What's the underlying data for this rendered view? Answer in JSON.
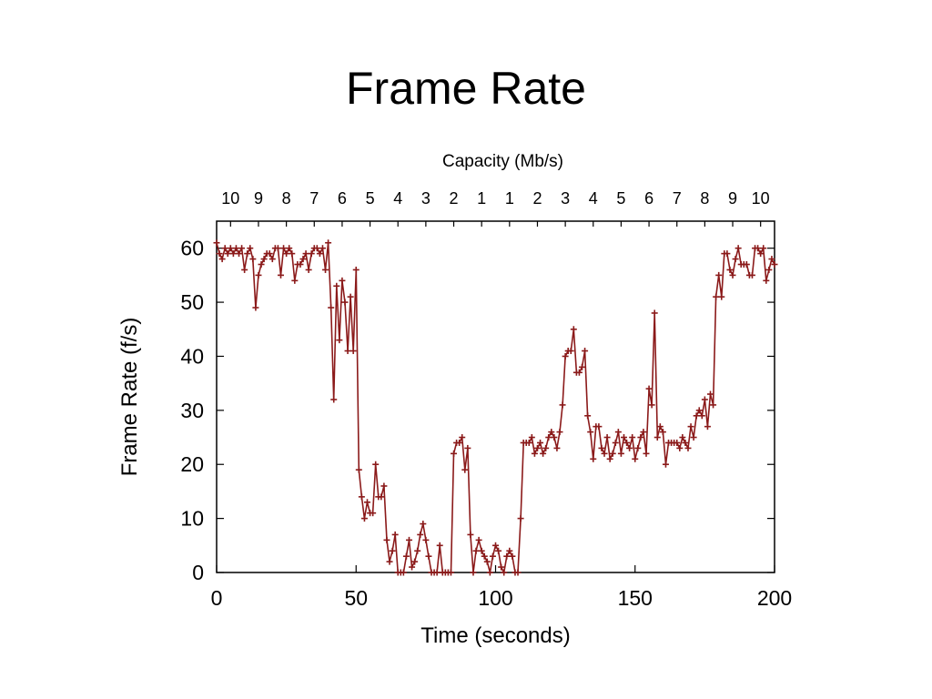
{
  "slide": {
    "title": "Frame Rate"
  },
  "chart_data": {
    "type": "line",
    "title": "",
    "xlabel": "Time (seconds)",
    "ylabel": "Frame Rate (f/s)",
    "x2label": "Capacity (Mb/s)",
    "xlim": [
      0,
      200
    ],
    "ylim": [
      0,
      65
    ],
    "xticks": [
      0,
      50,
      100,
      150,
      200
    ],
    "yticks": [
      0,
      10,
      20,
      30,
      40,
      50,
      60
    ],
    "top_ticks": [
      {
        "x": 5,
        "label": "10"
      },
      {
        "x": 15,
        "label": "9"
      },
      {
        "x": 25,
        "label": "8"
      },
      {
        "x": 35,
        "label": "7"
      },
      {
        "x": 45,
        "label": "6"
      },
      {
        "x": 55,
        "label": "5"
      },
      {
        "x": 65,
        "label": "4"
      },
      {
        "x": 75,
        "label": "3"
      },
      {
        "x": 85,
        "label": "2"
      },
      {
        "x": 95,
        "label": "1"
      },
      {
        "x": 105,
        "label": "1"
      },
      {
        "x": 115,
        "label": "2"
      },
      {
        "x": 125,
        "label": "3"
      },
      {
        "x": 135,
        "label": "4"
      },
      {
        "x": 145,
        "label": "5"
      },
      {
        "x": 155,
        "label": "6"
      },
      {
        "x": 165,
        "label": "7"
      },
      {
        "x": 175,
        "label": "8"
      },
      {
        "x": 185,
        "label": "9"
      },
      {
        "x": 195,
        "label": "10"
      }
    ],
    "grid": false,
    "color": "#8b1a1a",
    "marker": "plus",
    "series": [
      {
        "name": "",
        "x": [
          0,
          1,
          2,
          3,
          4,
          5,
          6,
          7,
          8,
          9,
          10,
          11,
          12,
          13,
          14,
          15,
          16,
          17,
          18,
          19,
          20,
          21,
          22,
          23,
          24,
          25,
          26,
          27,
          28,
          29,
          30,
          31,
          32,
          33,
          34,
          35,
          36,
          37,
          38,
          39,
          40,
          41,
          42,
          43,
          44,
          45,
          46,
          47,
          48,
          49,
          50,
          51,
          52,
          53,
          54,
          55,
          56,
          57,
          58,
          59,
          60,
          61,
          62,
          63,
          64,
          65,
          66,
          67,
          68,
          69,
          70,
          71,
          72,
          73,
          74,
          75,
          76,
          77,
          78,
          79,
          80,
          81,
          82,
          83,
          84,
          85,
          86,
          87,
          88,
          89,
          90,
          91,
          92,
          93,
          94,
          95,
          96,
          97,
          98,
          99,
          100,
          101,
          102,
          103,
          104,
          105,
          106,
          107,
          108,
          109,
          110,
          111,
          112,
          113,
          114,
          115,
          116,
          117,
          118,
          119,
          120,
          121,
          122,
          123,
          124,
          125,
          126,
          127,
          128,
          129,
          130,
          131,
          132,
          133,
          134,
          135,
          136,
          137,
          138,
          139,
          140,
          141,
          142,
          143,
          144,
          145,
          146,
          147,
          148,
          149,
          150,
          151,
          152,
          153,
          154,
          155,
          156,
          157,
          158,
          159,
          160,
          161,
          162,
          163,
          164,
          165,
          166,
          167,
          168,
          169,
          170,
          171,
          172,
          173,
          174,
          175,
          176,
          177,
          178,
          179,
          180,
          181,
          182,
          183,
          184,
          185,
          186,
          187,
          188,
          189,
          190,
          191,
          192,
          193,
          194,
          195,
          196,
          197,
          198,
          199,
          200
        ],
        "y": [
          61,
          59,
          58,
          60,
          59,
          60,
          59,
          60,
          59,
          60,
          56,
          59,
          60,
          58,
          49,
          55,
          57,
          58,
          59,
          59,
          58,
          60,
          60,
          55,
          60,
          59,
          60,
          59,
          54,
          57,
          57,
          58,
          59,
          56,
          59,
          60,
          60,
          59,
          60,
          56,
          61,
          49,
          32,
          53,
          43,
          54,
          50,
          41,
          51,
          41,
          56,
          19,
          14,
          10,
          13,
          11,
          11,
          20,
          14,
          14,
          16,
          6,
          2,
          4,
          7,
          0,
          0,
          0,
          3,
          6,
          1,
          2,
          4,
          7,
          9,
          6,
          3,
          0,
          0,
          0,
          5,
          0,
          0,
          0,
          0,
          22,
          24,
          24,
          25,
          19,
          23,
          7,
          0,
          4,
          6,
          4,
          3,
          2,
          0,
          3,
          5,
          4,
          1,
          0,
          3,
          4,
          3,
          0,
          0,
          10,
          24,
          24,
          24,
          25,
          22,
          23,
          24,
          22,
          23,
          25,
          26,
          25,
          23,
          26,
          31,
          40,
          41,
          41,
          45,
          37,
          37,
          38,
          41,
          29,
          26,
          21,
          27,
          27,
          23,
          22,
          25,
          21,
          22,
          24,
          26,
          22,
          25,
          24,
          23,
          25,
          21,
          23,
          25,
          26,
          22,
          34,
          31,
          48,
          25,
          27,
          26,
          20,
          24,
          24,
          24,
          24,
          23,
          25,
          24,
          23,
          27,
          25,
          29,
          30,
          29,
          32,
          27,
          33,
          31,
          51,
          55,
          51,
          59,
          59,
          56,
          55,
          58,
          60,
          57,
          57,
          57,
          55,
          55,
          60,
          60,
          59,
          60,
          54,
          56,
          58,
          57
        ]
      }
    ]
  }
}
